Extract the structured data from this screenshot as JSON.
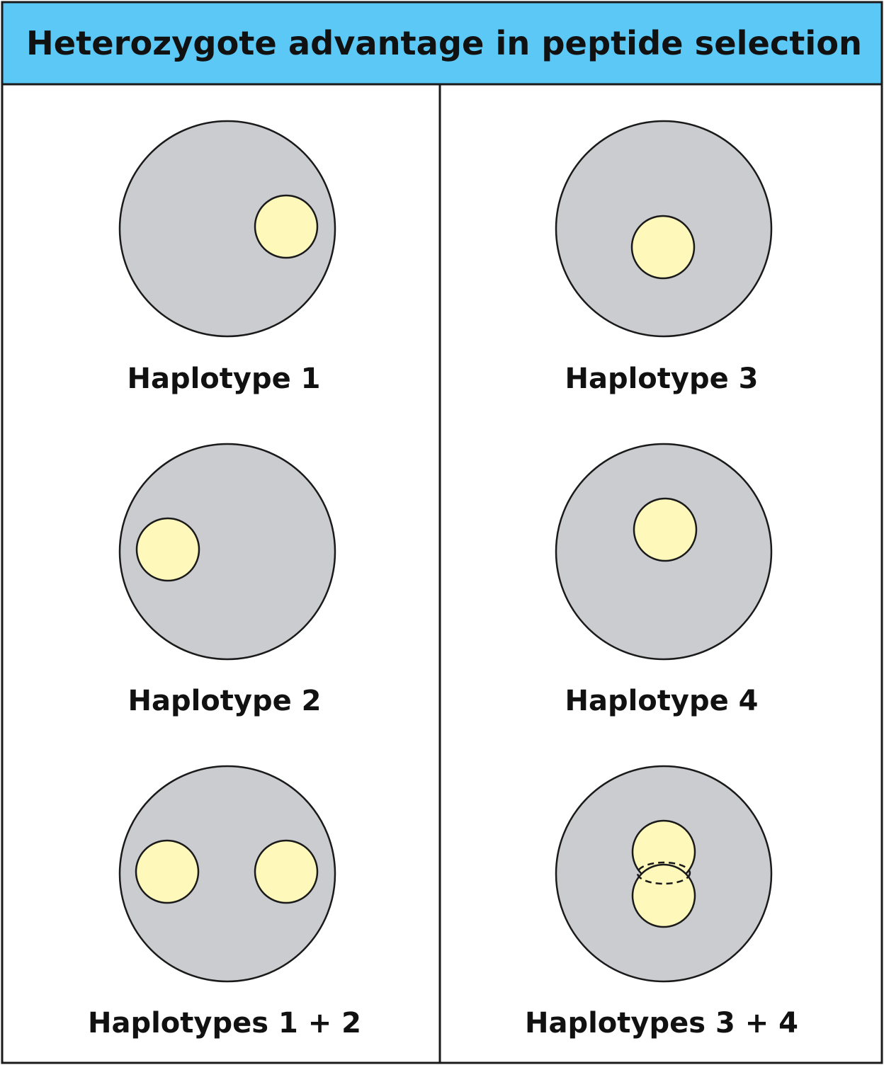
{
  "title": "Heterozygote advantage in peptide selection",
  "colors": {
    "header_bg": "#5bc8f5",
    "border": "#1a1a1a",
    "cell_fill": "#cbcccf",
    "peptide_fill": "#fef8bb",
    "background": "#ffffff"
  },
  "panels": [
    {
      "label": "Haplotype 1"
    },
    {
      "label": "Haplotype 2"
    },
    {
      "label": "Haplotypes 1 + 2"
    },
    {
      "label": "Haplotype 3"
    },
    {
      "label": "Haplotype 4"
    },
    {
      "label": "Haplotypes 3 + 4"
    }
  ]
}
